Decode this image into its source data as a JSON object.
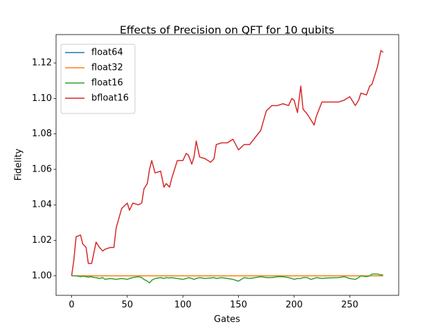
{
  "chart_data": {
    "type": "line",
    "title": "Effects of Precision on QFT for 10 qubits",
    "x_label": "Gates",
    "y_label": "Fidelity",
    "x": [
      0,
      2,
      4,
      8,
      10,
      13,
      15,
      18,
      20,
      22,
      25,
      28,
      30,
      35,
      38,
      40,
      45,
      50,
      52,
      55,
      60,
      63,
      65,
      68,
      70,
      72,
      75,
      80,
      83,
      85,
      88,
      90,
      95,
      100,
      103,
      105,
      108,
      110,
      112,
      115,
      120,
      125,
      128,
      130,
      135,
      140,
      145,
      150,
      155,
      160,
      165,
      170,
      175,
      180,
      185,
      190,
      195,
      198,
      200,
      203,
      206,
      208,
      212,
      215,
      218,
      220,
      225,
      230,
      240,
      245,
      250,
      255,
      258,
      260,
      265,
      268,
      270,
      275,
      278,
      280
    ],
    "series": [
      {
        "name": "float64",
        "color": "#1f77b4",
        "values": [
          1,
          1,
          1,
          1,
          1,
          1,
          1,
          1,
          1,
          1,
          1,
          1,
          1,
          1,
          1,
          1,
          1,
          1,
          1,
          1,
          1,
          1,
          1,
          1,
          1,
          1,
          1,
          1,
          1,
          1,
          1,
          1,
          1,
          1,
          1,
          1,
          1,
          1,
          1,
          1,
          1,
          1,
          1,
          1,
          1,
          1,
          1,
          1,
          1,
          1,
          1,
          1,
          1,
          1,
          1,
          1,
          1,
          1,
          1,
          1,
          1,
          1,
          1,
          1,
          1,
          1,
          1,
          1,
          1,
          1,
          1,
          1,
          1,
          1,
          1,
          1,
          1,
          1,
          1,
          1
        ]
      },
      {
        "name": "float32",
        "color": "#ff7f0e",
        "values": [
          1,
          1,
          1,
          1,
          1,
          1,
          1,
          1,
          1,
          1,
          1,
          1,
          1,
          1,
          1,
          1,
          1,
          1,
          1,
          1,
          1,
          1,
          1,
          1,
          1,
          1,
          1,
          1,
          1,
          1,
          1,
          1,
          1,
          1,
          1,
          1,
          1,
          1,
          1,
          1,
          1,
          1,
          1,
          1,
          1,
          1,
          1,
          1,
          1,
          1,
          1,
          1,
          1,
          1,
          1,
          1,
          1,
          1,
          1,
          1,
          1,
          1,
          1,
          1,
          1,
          1,
          1,
          1,
          1,
          1,
          1,
          1,
          1,
          1,
          1,
          1,
          1,
          1,
          1,
          1
        ]
      },
      {
        "name": "float16",
        "color": "#2ca02c",
        "values": [
          1.0,
          1.0,
          1.0,
          0.9995,
          0.9998,
          0.9995,
          0.9993,
          0.9995,
          0.999,
          0.999,
          0.9985,
          0.999,
          0.998,
          0.9985,
          0.9982,
          0.998,
          0.9985,
          0.998,
          0.9985,
          0.999,
          0.9995,
          0.999,
          0.998,
          0.997,
          0.996,
          0.9975,
          0.9985,
          0.999,
          0.9985,
          0.999,
          0.9988,
          0.999,
          0.9985,
          0.998,
          0.9985,
          0.999,
          0.9985,
          0.998,
          0.9985,
          0.999,
          0.9985,
          0.9988,
          0.999,
          0.9985,
          0.999,
          0.9985,
          0.998,
          0.997,
          0.999,
          0.9985,
          0.999,
          0.9995,
          0.999,
          0.999,
          0.9995,
          0.9995,
          0.999,
          0.9985,
          0.998,
          0.9985,
          0.9985,
          0.999,
          0.999,
          0.998,
          0.9985,
          0.999,
          0.9985,
          0.9988,
          0.999,
          0.9995,
          0.9985,
          0.998,
          0.999,
          1.0,
          0.9995,
          1.0,
          1.001,
          1.001,
          1.0005,
          1.0005
        ]
      },
      {
        "name": "bfloat16",
        "color": "#d62728",
        "values": [
          1.0,
          1.009,
          1.022,
          1.023,
          1.018,
          1.016,
          1.007,
          1.007,
          1.013,
          1.019,
          1.016,
          1.014,
          1.015,
          1.016,
          1.016,
          1.027,
          1.038,
          1.041,
          1.037,
          1.041,
          1.04,
          1.041,
          1.049,
          1.052,
          1.06,
          1.065,
          1.058,
          1.059,
          1.05,
          1.052,
          1.05,
          1.055,
          1.065,
          1.065,
          1.069,
          1.068,
          1.063,
          1.067,
          1.076,
          1.067,
          1.066,
          1.064,
          1.066,
          1.074,
          1.075,
          1.075,
          1.077,
          1.071,
          1.074,
          1.074,
          1.078,
          1.082,
          1.093,
          1.096,
          1.096,
          1.097,
          1.096,
          1.1,
          1.099,
          1.092,
          1.107,
          1.094,
          1.091,
          1.088,
          1.085,
          1.09,
          1.098,
          1.098,
          1.098,
          1.099,
          1.101,
          1.096,
          1.099,
          1.103,
          1.102,
          1.107,
          1.108,
          1.118,
          1.127,
          1.126
        ]
      }
    ],
    "xlim": [
      -14,
      294
    ],
    "ylim": [
      0.989,
      1.136
    ],
    "xticks": [
      0,
      50,
      100,
      150,
      200,
      250
    ],
    "yticks": [
      {
        "value": 1.0,
        "label": "1.00"
      },
      {
        "value": 1.02,
        "label": "1.02"
      },
      {
        "value": 1.04,
        "label": "1.04"
      },
      {
        "value": 1.06,
        "label": "1.06"
      },
      {
        "value": 1.08,
        "label": "1.08"
      },
      {
        "value": 1.1,
        "label": "1.10"
      },
      {
        "value": 1.12,
        "label": "1.12"
      }
    ],
    "legend": "upper left",
    "grid": false
  }
}
